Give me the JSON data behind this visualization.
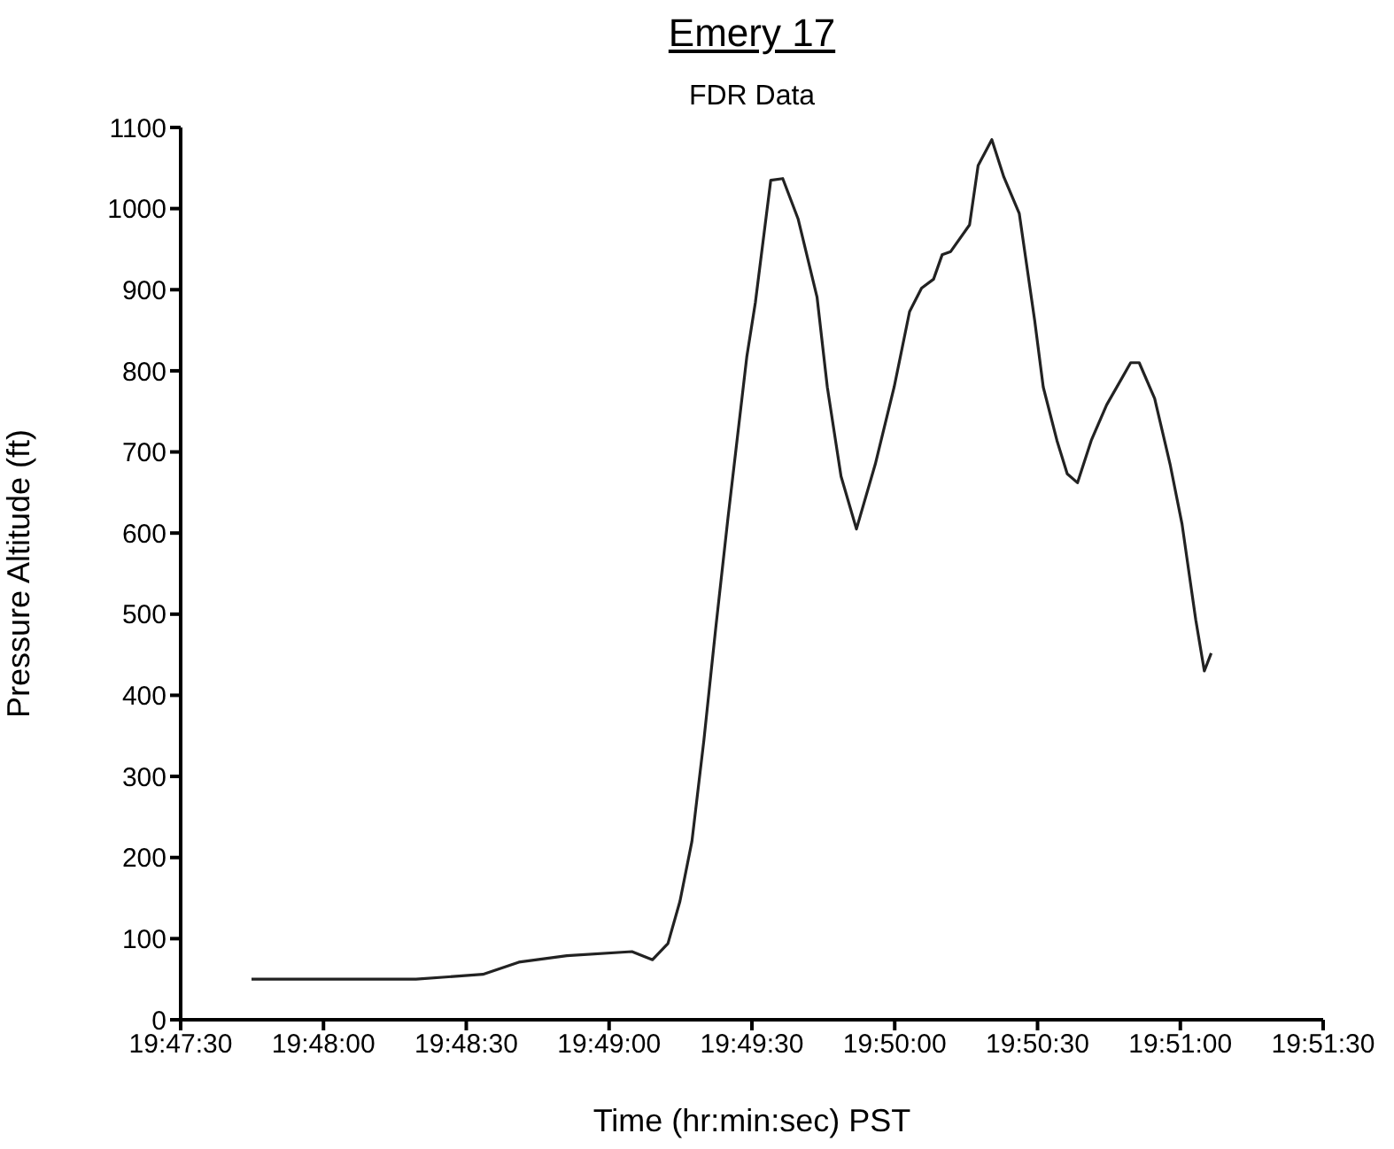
{
  "chart_data": {
    "type": "line",
    "title": "Emery 17",
    "subtitle": "FDR Data",
    "xlabel": "Time (hr:min:sec) PST",
    "ylabel": "Pressure Altitude (ft)",
    "x": [
      19.7958,
      19.8054,
      19.8093,
      19.8114,
      19.8142,
      19.818,
      19.8192,
      19.8201,
      19.8208,
      19.8215,
      19.8222,
      19.8229,
      19.8236,
      19.8247,
      19.8252,
      19.8261,
      19.8268,
      19.8277,
      19.8288,
      19.8294,
      19.8302,
      19.8311,
      19.8322,
      19.8333,
      19.8342,
      19.8349,
      19.8356,
      19.8361,
      19.8366,
      19.8377,
      19.8382,
      19.839,
      19.8397,
      19.8406,
      19.8415,
      19.842,
      19.8428,
      19.8434,
      19.844,
      19.8448,
      19.8457,
      19.8471,
      19.8476,
      19.8485,
      19.8494,
      19.8501,
      19.8509,
      19.8514,
      19.8518
    ],
    "series": [
      {
        "color": "#222222",
        "values": [
          50,
          50,
          56,
          71,
          79,
          84,
          74,
          94,
          146,
          220,
          345,
          485,
          618,
          817,
          884,
          1035,
          1037,
          987,
          891,
          780,
          670,
          605,
          685,
          780,
          873,
          902,
          913,
          943,
          947,
          980,
          1053,
          1085,
          1039,
          994,
          862,
          780,
          714,
          673,
          662,
          714,
          758,
          810,
          810,
          766,
          685,
          611,
          493,
          430,
          452
        ]
      }
    ],
    "xlim": [
      19.791667,
      19.858333
    ],
    "xticks": [
      {
        "value": 19.791667,
        "label": "19:47:30"
      },
      {
        "value": 19.8,
        "label": "19:48:00"
      },
      {
        "value": 19.808333,
        "label": "19:48:30"
      },
      {
        "value": 19.816667,
        "label": "19:49:00"
      },
      {
        "value": 19.825,
        "label": "19:49:30"
      },
      {
        "value": 19.833333,
        "label": "19:50:00"
      },
      {
        "value": 19.841667,
        "label": "19:50:30"
      },
      {
        "value": 19.85,
        "label": "19:51:00"
      },
      {
        "value": 19.858333,
        "label": "19:51:30"
      }
    ],
    "ylim": [
      0,
      1100
    ],
    "yticks": [
      0,
      100,
      200,
      300,
      400,
      500,
      600,
      700,
      800,
      900,
      1000,
      1100
    ],
    "grid": false,
    "legend": false
  }
}
